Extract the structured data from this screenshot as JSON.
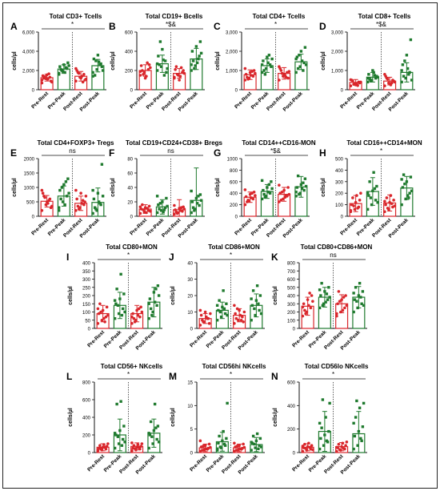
{
  "colors": {
    "pre": "#d9262b",
    "post": "#1f7a2e",
    "axis": "#111111",
    "line": "#111111"
  },
  "chart_data": [
    {
      "letter": "A",
      "title": "Total CD3+ Tcells",
      "ylabel": "cells/µl",
      "ylim": [
        0,
        6000
      ],
      "yticks": [
        "0",
        "2,000",
        "4,000",
        "6,000"
      ],
      "sig": "*",
      "categories": [
        "Pre-Rest",
        "Pre-Peak",
        "Post-Rest",
        "Post-Peak"
      ],
      "means": [
        1250,
        2150,
        1400,
        2500
      ],
      "errs": [
        350,
        450,
        500,
        650
      ],
      "points": [
        [
          1000,
          1150,
          1300,
          1450,
          1550,
          900,
          1200,
          1100,
          800,
          1350,
          1650,
          700
        ],
        [
          1700,
          1900,
          2200,
          2400,
          2600,
          2800,
          2100,
          1800,
          2500,
          2000,
          2300,
          1600
        ],
        [
          900,
          1300,
          1600,
          2000,
          1200,
          1000,
          1800,
          1400,
          1100,
          1700,
          800,
          2200
        ],
        [
          1800,
          2100,
          2700,
          3200,
          3600,
          2400,
          1500,
          2900,
          2000,
          3000,
          2600,
          1400
        ]
      ]
    },
    {
      "letter": "B",
      "title": "Total CD19+ Bcells",
      "ylabel": "cells/µl",
      "ylim": [
        0,
        600
      ],
      "yticks": [
        "0",
        "200",
        "400",
        "600"
      ],
      "sig": "*$&",
      "categories": [
        "Pre-Rest",
        "Pre-Peak",
        "Post-Rest",
        "Post-Peak"
      ],
      "means": [
        200,
        270,
        170,
        320
      ],
      "errs": [
        60,
        90,
        50,
        110
      ],
      "points": [
        [
          150,
          180,
          210,
          250,
          120,
          260,
          200,
          140,
          230,
          160,
          280,
          190
        ],
        [
          200,
          240,
          300,
          350,
          420,
          180,
          260,
          310,
          220,
          500,
          150,
          270
        ],
        [
          120,
          150,
          180,
          210,
          100,
          200,
          240,
          140,
          170,
          160,
          230,
          130
        ],
        [
          200,
          250,
          350,
          400,
          450,
          500,
          300,
          280,
          380,
          220,
          320,
          260
        ]
      ]
    },
    {
      "letter": "C",
      "title": "Total CD4+ Tcells",
      "ylabel": "cells/µl",
      "ylim": [
        0,
        3000
      ],
      "yticks": [
        "0",
        "1,000",
        "2,000",
        "3,000"
      ],
      "sig": "*",
      "categories": [
        "Pre-Rest",
        "Pre-Peak",
        "Post-Rest",
        "Post-Peak"
      ],
      "means": [
        780,
        1250,
        850,
        1450
      ],
      "errs": [
        250,
        350,
        300,
        400
      ],
      "points": [
        [
          500,
          600,
          700,
          800,
          900,
          1000,
          650,
          750,
          850,
          550,
          950,
          1100
        ],
        [
          900,
          1100,
          1300,
          1500,
          1700,
          1200,
          1000,
          1400,
          1600,
          800,
          1800,
          1300
        ],
        [
          500,
          700,
          900,
          1100,
          800,
          600,
          1000,
          750,
          950,
          850,
          650,
          1200
        ],
        [
          900,
          1200,
          1400,
          1700,
          2000,
          2200,
          1100,
          1500,
          1300,
          1800,
          1000,
          1600
        ]
      ]
    },
    {
      "letter": "D",
      "title": "Total CD8+ Tcells",
      "ylabel": "cells/µl",
      "ylim": [
        0,
        3000
      ],
      "yticks": [
        "0",
        "1,000",
        "2,000",
        "3,000"
      ],
      "sig": "*$&",
      "categories": [
        "Pre-Rest",
        "Pre-Peak",
        "Post-Rest",
        "Post-Peak"
      ],
      "means": [
        380,
        650,
        450,
        900
      ],
      "errs": [
        150,
        250,
        200,
        500
      ],
      "points": [
        [
          200,
          300,
          400,
          500,
          250,
          350,
          450,
          300,
          400,
          280,
          220,
          520
        ],
        [
          400,
          500,
          600,
          800,
          1000,
          700,
          550,
          900,
          650,
          450,
          750,
          600
        ],
        [
          200,
          350,
          500,
          700,
          300,
          450,
          600,
          250,
          400,
          550,
          350,
          800
        ],
        [
          400,
          600,
          900,
          1300,
          1800,
          2600,
          700,
          1100,
          500,
          1500,
          800,
          1000
        ]
      ]
    },
    {
      "letter": "E",
      "title": "Total CD4+FOXP3+ Tregs",
      "ylabel": "cells/µl",
      "ylim": [
        0,
        2000
      ],
      "yticks": [
        "0",
        "500",
        "1000",
        "1500",
        "2000"
      ],
      "sig": "ns",
      "categories": [
        "Pre-Rest",
        "Pre-Peak",
        "Post-Rest",
        "Post-Peak"
      ],
      "means": [
        520,
        700,
        450,
        480
      ],
      "errs": [
        200,
        350,
        250,
        500
      ],
      "points": [
        [
          200,
          400,
          600,
          800,
          500,
          300,
          700,
          450,
          350,
          650,
          550,
          900
        ],
        [
          300,
          500,
          700,
          900,
          1100,
          1300,
          600,
          400,
          800,
          1000,
          1200,
          200
        ],
        [
          200,
          300,
          400,
          600,
          800,
          500,
          350,
          450,
          700,
          250,
          550,
          900
        ],
        [
          100,
          200,
          400,
          600,
          800,
          1800,
          300,
          500,
          700,
          250,
          450,
          900
        ]
      ]
    },
    {
      "letter": "F",
      "title": "Total CD19+CD24+CD38+ Bregs",
      "ylabel": "cells/µl",
      "ylim": [
        0,
        80
      ],
      "yticks": [
        "0",
        "20",
        "40",
        "60",
        "80"
      ],
      "sig": "ns",
      "categories": [
        "Pre-Rest",
        "Pre-Peak",
        "Post-Rest",
        "Post-Peak"
      ],
      "means": [
        10,
        13,
        9,
        22
      ],
      "errs": [
        6,
        10,
        14,
        45
      ],
      "points": [
        [
          4,
          6,
          8,
          10,
          12,
          14,
          16,
          5,
          7,
          9,
          11,
          13
        ],
        [
          5,
          8,
          12,
          16,
          20,
          25,
          10,
          6,
          14,
          18,
          9,
          28
        ],
        [
          3,
          5,
          7,
          9,
          11,
          13,
          6,
          8,
          10,
          4,
          12,
          15
        ],
        [
          5,
          10,
          15,
          20,
          25,
          30,
          12,
          18,
          22,
          8,
          28,
          35
        ]
      ]
    },
    {
      "letter": "G",
      "title": "Total CD14++CD16-MON",
      "ylabel": "cells/µl",
      "ylim": [
        0,
        1000
      ],
      "yticks": [
        "0",
        "200",
        "400",
        "600",
        "800",
        "1000"
      ],
      "sig": "*$&",
      "categories": [
        "Pre-Rest",
        "Pre-Peak",
        "Post-Rest",
        "Post-Peak"
      ],
      "means": [
        330,
        430,
        380,
        510
      ],
      "errs": [
        90,
        120,
        120,
        180
      ],
      "points": [
        [
          200,
          260,
          300,
          340,
          380,
          420,
          250,
          320,
          360,
          280,
          400,
          460
        ],
        [
          300,
          350,
          400,
          450,
          500,
          600,
          380,
          420,
          480,
          330,
          550,
          620
        ],
        [
          250,
          300,
          350,
          400,
          450,
          500,
          280,
          330,
          380,
          420,
          360,
          540
        ],
        [
          350,
          400,
          450,
          500,
          550,
          650,
          700,
          480,
          520,
          380,
          580,
          420
        ]
      ]
    },
    {
      "letter": "H",
      "title": "Total CD16++CD14+MON",
      "ylabel": "cells/µl",
      "ylim": [
        0,
        500
      ],
      "yticks": [
        "0",
        "100",
        "200",
        "300",
        "400",
        "500"
      ],
      "sig": "*",
      "categories": [
        "Pre-Rest",
        "Pre-Peak",
        "Post-Rest",
        "Post-Peak"
      ],
      "means": [
        110,
        215,
        115,
        245
      ],
      "errs": [
        70,
        120,
        70,
        100
      ],
      "points": [
        [
          40,
          60,
          80,
          100,
          120,
          140,
          160,
          180,
          200,
          90,
          70,
          50
        ],
        [
          60,
          100,
          140,
          180,
          220,
          260,
          300,
          380,
          120,
          160,
          240,
          200
        ],
        [
          40,
          60,
          80,
          100,
          120,
          140,
          160,
          180,
          90,
          70,
          110,
          130
        ],
        [
          100,
          150,
          200,
          250,
          300,
          340,
          360,
          180,
          220,
          280,
          160,
          320
        ]
      ]
    },
    {
      "letter": "I",
      "title": "Total CD80+MON",
      "ylabel": "cells/µl",
      "ylim": [
        0,
        400
      ],
      "yticks": [
        "0",
        "50",
        "100",
        "150",
        "200",
        "250",
        "300",
        "350",
        "400"
      ],
      "sig": "*",
      "categories": [
        "Pre-Rest",
        "Pre-Peak",
        "Post-Rest",
        "Post-Peak"
      ],
      "means": [
        90,
        140,
        90,
        160
      ],
      "errs": [
        50,
        80,
        50,
        90
      ],
      "points": [
        [
          30,
          50,
          70,
          90,
          110,
          130,
          150,
          60,
          80,
          100,
          40,
          120
        ],
        [
          60,
          90,
          120,
          150,
          180,
          210,
          240,
          330,
          100,
          140,
          80,
          170
        ],
        [
          30,
          50,
          70,
          90,
          110,
          130,
          60,
          80,
          100,
          40,
          120,
          70
        ],
        [
          60,
          100,
          140,
          180,
          220,
          260,
          120,
          160,
          200,
          80,
          240,
          150
        ]
      ]
    },
    {
      "letter": "J",
      "title": "Total CD86+MON",
      "ylabel": "cells/µl",
      "ylim": [
        0,
        40
      ],
      "yticks": [
        "0",
        "10",
        "20",
        "30",
        "40"
      ],
      "sig": "*",
      "categories": [
        "Pre-Rest",
        "Pre-Peak",
        "Post-Rest",
        "Post-Peak"
      ],
      "means": [
        6,
        11,
        8,
        14
      ],
      "errs": [
        3,
        5,
        4,
        7
      ],
      "points": [
        [
          2,
          4,
          6,
          8,
          10,
          3,
          5,
          7,
          9,
          4,
          6,
          11
        ],
        [
          5,
          7,
          9,
          11,
          13,
          15,
          17,
          23,
          8,
          10,
          12,
          14
        ],
        [
          3,
          5,
          7,
          9,
          11,
          4,
          6,
          8,
          10,
          12,
          5,
          14
        ],
        [
          5,
          8,
          11,
          14,
          17,
          20,
          23,
          26,
          9,
          12,
          15,
          18
        ]
      ]
    },
    {
      "letter": "K",
      "title": "Total CD80+CD86+MON",
      "ylabel": "cells/µl",
      "ylim": [
        0,
        800
      ],
      "yticks": [
        "0",
        "100",
        "200",
        "300",
        "400",
        "500",
        "600",
        "700",
        "800"
      ],
      "sig": "ns",
      "categories": [
        "Pre-Rest",
        "Pre-Peak",
        "Post-Rest",
        "Post-Peak"
      ],
      "means": [
        270,
        380,
        300,
        380
      ],
      "errs": [
        110,
        120,
        110,
        130
      ],
      "points": [
        [
          150,
          200,
          250,
          300,
          350,
          400,
          220,
          280,
          330,
          180,
          430,
          260
        ],
        [
          250,
          300,
          350,
          400,
          450,
          500,
          550,
          320,
          380,
          280,
          420,
          470
        ],
        [
          150,
          200,
          250,
          300,
          350,
          400,
          450,
          220,
          280,
          330,
          380,
          180
        ],
        [
          200,
          250,
          300,
          350,
          400,
          450,
          500,
          550,
          280,
          330,
          380,
          430
        ]
      ]
    },
    {
      "letter": "L",
      "title": "Total CD56+ NKcells",
      "ylabel": "cells/µl",
      "ylim": [
        0,
        800
      ],
      "yticks": [
        "0",
        "200",
        "400",
        "600",
        "800"
      ],
      "sig": "*",
      "categories": [
        "Pre-Rest",
        "Pre-Peak",
        "Post-Rest",
        "Post-Peak"
      ],
      "means": [
        60,
        200,
        70,
        220
      ],
      "errs": [
        40,
        180,
        40,
        160
      ],
      "points": [
        [
          20,
          30,
          40,
          50,
          60,
          70,
          80,
          90,
          100,
          40,
          60,
          30
        ],
        [
          50,
          100,
          150,
          200,
          250,
          300,
          550,
          580,
          120,
          180,
          80,
          220
        ],
        [
          20,
          30,
          40,
          50,
          60,
          70,
          80,
          90,
          100,
          45,
          55,
          110
        ],
        [
          50,
          100,
          150,
          200,
          250,
          300,
          350,
          550,
          120,
          180,
          280,
          220
        ]
      ]
    },
    {
      "letter": "M",
      "title": "Total CD56hi NKcells",
      "ylabel": "cells/µl",
      "ylim": [
        0,
        15
      ],
      "yticks": [
        "0",
        "5",
        "10",
        "15"
      ],
      "sig": "*",
      "categories": [
        "Pre-Rest",
        "Pre-Peak",
        "Post-Rest",
        "Post-Peak"
      ],
      "means": [
        1,
        2.3,
        1,
        1.7
      ],
      "errs": [
        0.8,
        2,
        0.8,
        1.5
      ],
      "points": [
        [
          0.3,
          0.6,
          0.9,
          1.2,
          1.5,
          1.8,
          0.5,
          0.8,
          1.1,
          1.4,
          0.7,
          2.5
        ],
        [
          0.5,
          1,
          1.5,
          2,
          2.5,
          3,
          3.5,
          4.5,
          10.5,
          1.2,
          1.8,
          0.8
        ],
        [
          0.3,
          0.6,
          0.9,
          1.2,
          1.5,
          1.8,
          0.5,
          0.8,
          1.1,
          1.4,
          0.7,
          2
        ],
        [
          0.5,
          1,
          1.5,
          2,
          2.5,
          3,
          3.5,
          4,
          1.2,
          1.8,
          0.8,
          2.2
        ]
      ]
    },
    {
      "letter": "N",
      "title": "Total CD56lo NKcells",
      "ylabel": "cells/µl",
      "ylim": [
        0,
        600
      ],
      "yticks": [
        "0",
        "200",
        "400",
        "600"
      ],
      "sig": "*",
      "categories": [
        "Pre-Rest",
        "Pre-Peak",
        "Post-Rest",
        "Post-Peak"
      ],
      "means": [
        45,
        180,
        50,
        160
      ],
      "errs": [
        30,
        170,
        35,
        190
      ],
      "points": [
        [
          10,
          20,
          30,
          40,
          50,
          60,
          70,
          80,
          25,
          35,
          45,
          55
        ],
        [
          30,
          60,
          90,
          120,
          150,
          180,
          210,
          300,
          420,
          450,
          100,
          250
        ],
        [
          10,
          20,
          30,
          40,
          50,
          60,
          70,
          80,
          90,
          25,
          35,
          45
        ],
        [
          30,
          60,
          100,
          140,
          180,
          220,
          300,
          380,
          420,
          440,
          120,
          250
        ]
      ]
    }
  ]
}
